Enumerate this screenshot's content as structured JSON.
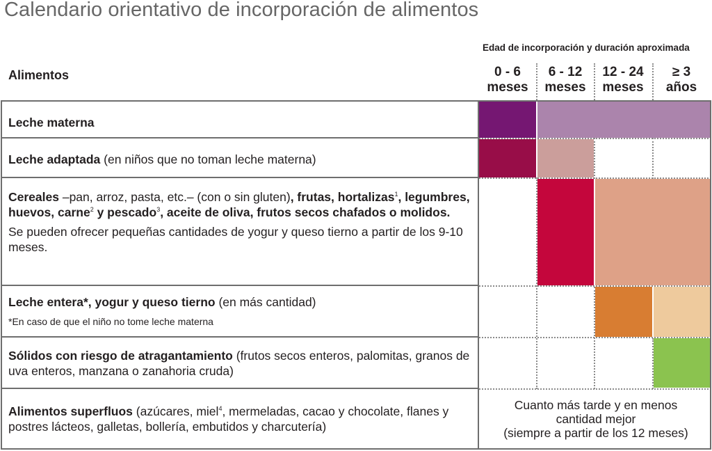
{
  "title": "Calendario orientativo de incorporación de alimentos",
  "header": {
    "alimentos": "Alimentos",
    "edad": "Edad de incorporación y duración aproximada",
    "ages": [
      {
        "l1": "0 - 6",
        "l2": "meses"
      },
      {
        "l1": "6 - 12",
        "l2": "meses"
      },
      {
        "l1": "12 - 24",
        "l2": "meses"
      },
      {
        "l1": "≥ 3",
        "l2": "años"
      }
    ]
  },
  "rows": {
    "leche_materna": {
      "bold": "Leche materna"
    },
    "leche_adaptada": {
      "bold": "Leche adaptada",
      "normal": " (en niños que no toman leche materna)"
    },
    "cereales": {
      "b1": "Cereales",
      "n1": " –pan, arroz, pasta, etc.– (con o sin gluten)",
      "b2": ", frutas, hortalizas",
      "s1": "1",
      "b3": ", legumbres, huevos, carne",
      "s2": "2",
      "b4": " y pescado",
      "s3": "3",
      "b5": ", aceite de oliva, frutos secos chafados o molidos.",
      "extra": "Se pueden ofrecer pequeñas cantidades de yogur y queso tierno a partir de los 9-10 meses."
    },
    "leche_entera": {
      "bold": "Leche entera*, yogur y queso tierno",
      "normal": " (en más cantidad)",
      "note": "*En caso de que el niño no tome leche materna"
    },
    "solidos": {
      "bold": "Sólidos con riesgo de atragantamiento",
      "normal": " (frutos secos enteros, palomitas, granos de uva enteros, manzana o zanahoria cruda)"
    },
    "superfluos": {
      "bold": "Alimentos superfluos",
      "n1": " (azúcares, miel",
      "sup": "4",
      "n2": ", mermeladas, cacao y chocolate, flanes y postres lácteos, galletas, bollería, embutidos y charcutería)"
    }
  },
  "final_note": {
    "l1": "Cuanto más tarde y en menos",
    "l2": "cantidad mejor",
    "l3": "(siempre a partir de los 12 meses)"
  },
  "colors": {
    "leche_materna_0_6": "#751772",
    "leche_materna_after": "#ab84ac",
    "leche_adaptada_0_6": "#980d48",
    "leche_adaptada_6_12": "#cb9e9b",
    "cereales_6_12": "#c4063c",
    "cereales_after": "#dea187",
    "leche_entera_12_24": "#d87d32",
    "leche_entera_3": "#eeca9d",
    "solidos_3": "#8bc34f"
  }
}
